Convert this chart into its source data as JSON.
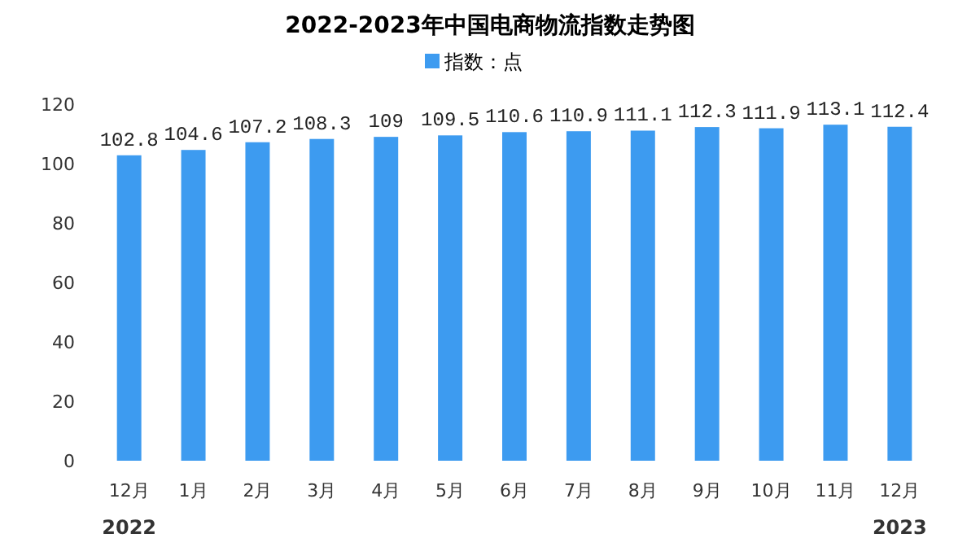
{
  "chart_data": {
    "type": "bar",
    "title": "2022-2023年中国电商物流指数走势图",
    "categories": [
      "12月",
      "1月",
      "2月",
      "3月",
      "4月",
      "5月",
      "6月",
      "7月",
      "8月",
      "9月",
      "10月",
      "11月",
      "12月"
    ],
    "series": [
      {
        "name": "指数：点",
        "color": "#3d9bf0",
        "values": [
          102.8,
          104.6,
          107.2,
          108.3,
          109,
          109.5,
          110.6,
          110.9,
          111.1,
          112.3,
          111.9,
          113.1,
          112.4
        ]
      }
    ],
    "ylim": [
      0,
      120
    ],
    "yticks": [
      0,
      20,
      40,
      60,
      80,
      100,
      120
    ],
    "grid": false,
    "legend": "top",
    "data_labels": true,
    "annotations": [
      "2022",
      "2023"
    ]
  }
}
